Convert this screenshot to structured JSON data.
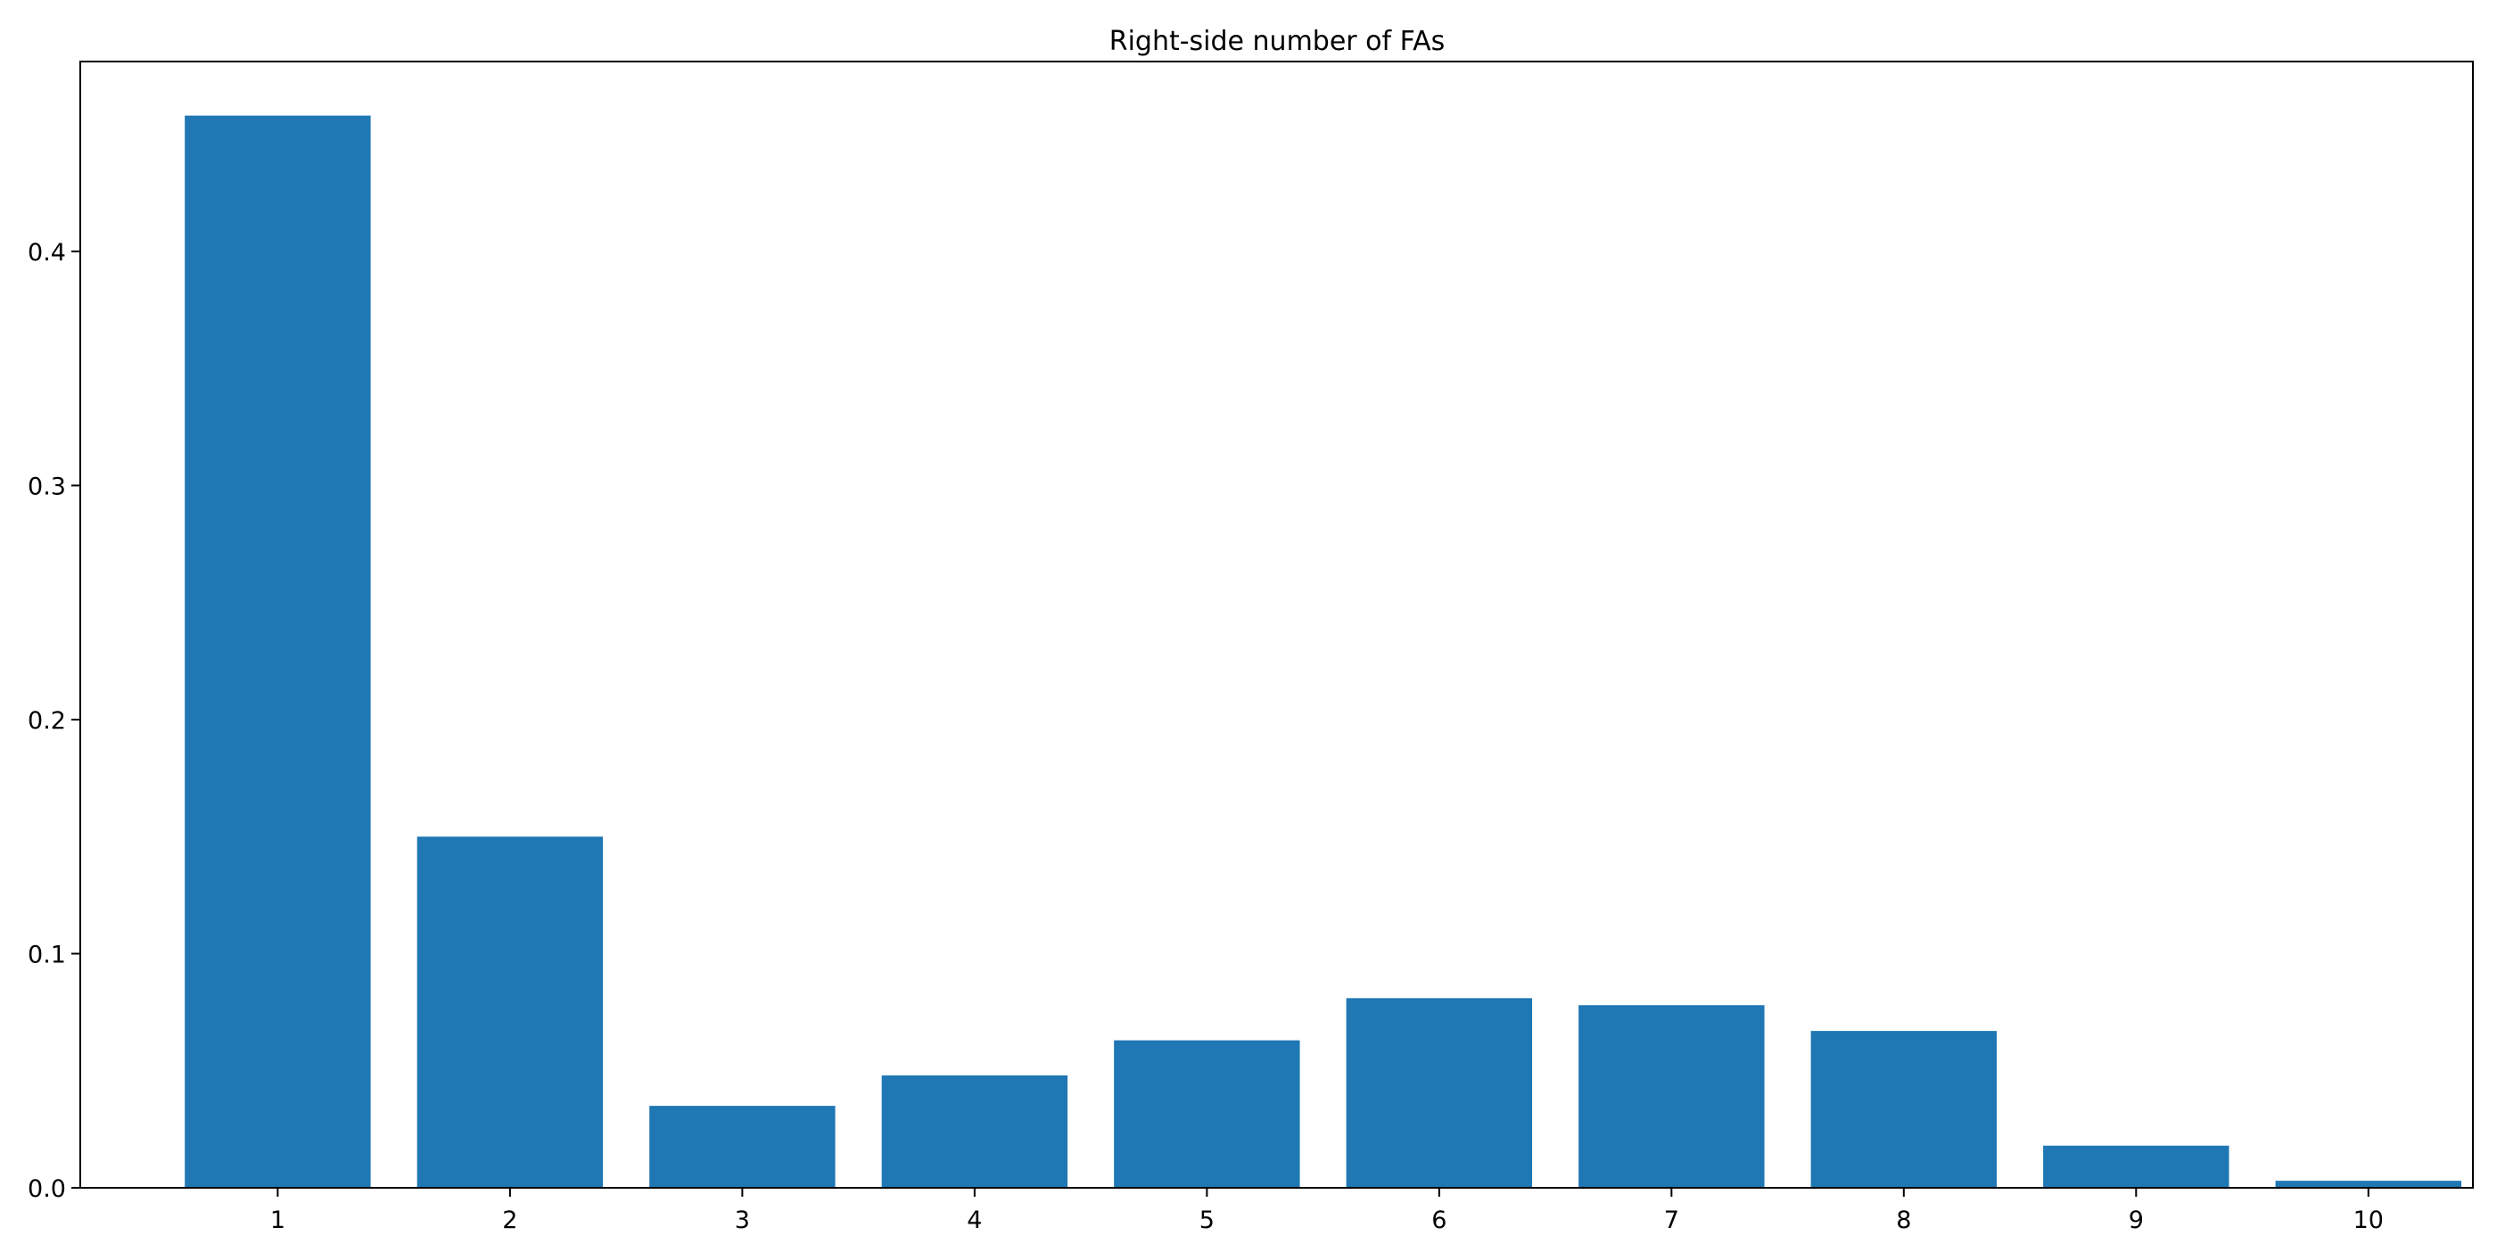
{
  "chart_data": {
    "type": "bar",
    "title": "Right-side number of FAs",
    "xlabel": "",
    "ylabel": "",
    "categories": [
      "1",
      "2",
      "3",
      "4",
      "5",
      "6",
      "7",
      "8",
      "9",
      "10"
    ],
    "values": [
      0.458,
      0.15,
      0.035,
      0.048,
      0.063,
      0.081,
      0.078,
      0.067,
      0.018,
      0.003
    ],
    "ylim": [
      0,
      0.4811
    ],
    "yticks": [
      0.0,
      0.1,
      0.2,
      0.3,
      0.4
    ],
    "ytick_labels": [
      "0.0",
      "0.1",
      "0.2",
      "0.3",
      "0.4"
    ],
    "grid": false,
    "legend": "none",
    "colors": {
      "bar": "#1f77b4",
      "axes": "#000000",
      "background": "#ffffff"
    }
  }
}
